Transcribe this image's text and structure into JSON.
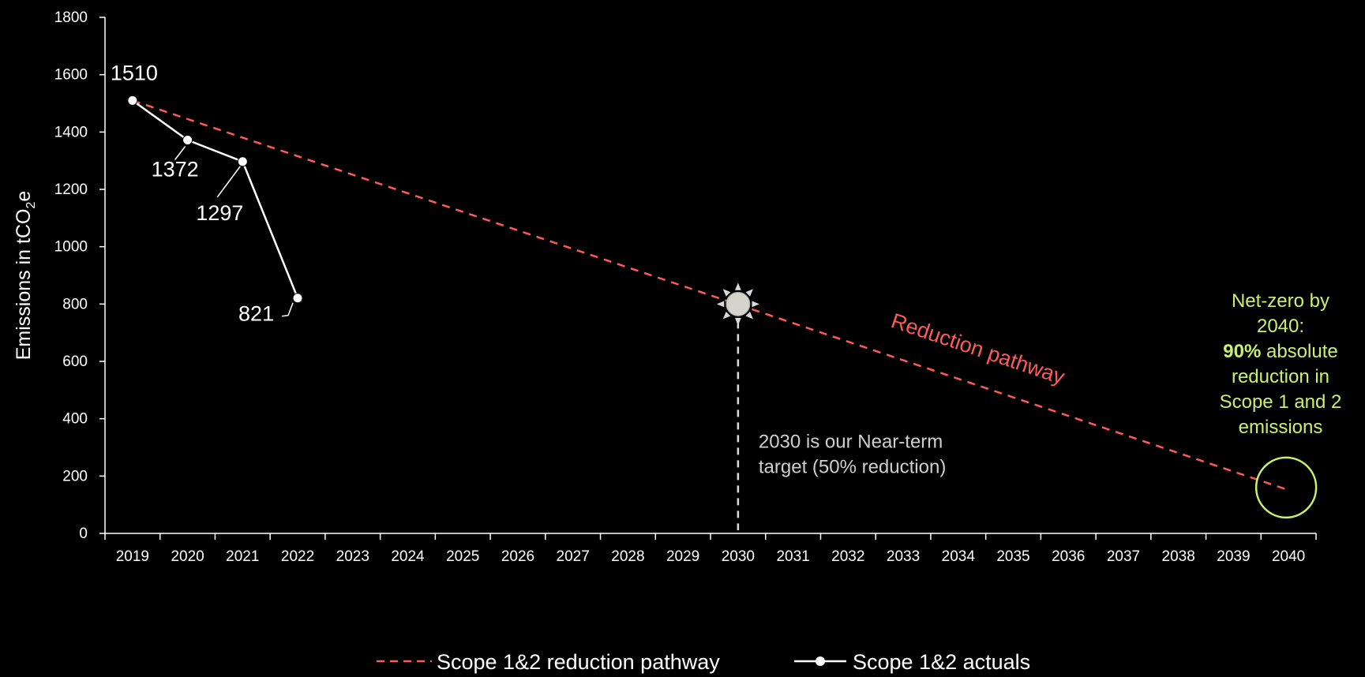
{
  "chart_data": {
    "type": "line",
    "categories": [
      "2019",
      "2020",
      "2021",
      "2022",
      "2023",
      "2024",
      "2025",
      "2026",
      "2027",
      "2028",
      "2029",
      "2030",
      "2031",
      "2032",
      "2033",
      "2034",
      "2035",
      "2036",
      "2037",
      "2038",
      "2039",
      "2040"
    ],
    "ylabel": "Emissions in tCO2e",
    "ylabel_main": "Emissions in tCO",
    "ylabel_sub": "2",
    "ylabel_end": "e",
    "ylim": [
      0,
      1800
    ],
    "yticks": [
      0,
      200,
      400,
      600,
      800,
      1000,
      1200,
      1400,
      1600,
      1800
    ],
    "grid": false,
    "legend_position": "bottom-center",
    "series": [
      {
        "name": "Scope 1&2 reduction pathway",
        "style": "dashed",
        "color": "#ff5a5a",
        "x": [
          "2019",
          "2040"
        ],
        "values": [
          1510,
          151
        ]
      },
      {
        "name": "Scope 1&2 actuals",
        "style": "solid-with-markers",
        "color": "#ffffff",
        "x": [
          "2019",
          "2020",
          "2021",
          "2022"
        ],
        "values": [
          1510,
          1372,
          1297,
          821
        ],
        "labels": [
          "1510",
          "1372",
          "1297",
          "821"
        ]
      }
    ],
    "annotations": {
      "pathway_label": "Reduction pathway",
      "near_term_year": "2030",
      "near_term_value": 800,
      "near_term_icon": "sun-icon",
      "near_term_line1": "2030 is our Near-term",
      "near_term_line2": "target (50% reduction)",
      "netzero_year": "2040",
      "netzero_value": 160,
      "netzero_line1": "Net-zero by",
      "netzero_line2": "2040:",
      "netzero_bold": "90%",
      "netzero_line3_rest": " absolute",
      "netzero_line4": "reduction in",
      "netzero_line5": "Scope 1 and 2",
      "netzero_line6": "emissions"
    },
    "colors": {
      "background": "#000000",
      "axis": "#ffffff",
      "pathway": "#ff5a5a",
      "actuals": "#ffffff",
      "netzero": "#c8f26e",
      "note": "#cfcfcf"
    }
  }
}
